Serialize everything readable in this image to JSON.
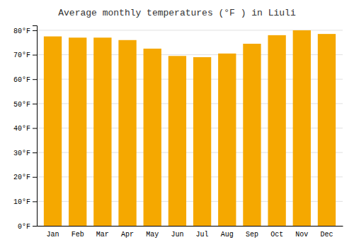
{
  "chart_data": {
    "type": "bar",
    "title": "Average monthly temperatures (°F ) in Liuli",
    "categories": [
      "Jan",
      "Feb",
      "Mar",
      "Apr",
      "May",
      "Jun",
      "Jul",
      "Aug",
      "Sep",
      "Oct",
      "Nov",
      "Dec"
    ],
    "values": [
      77.5,
      77.0,
      77.0,
      76.0,
      72.5,
      69.5,
      69.0,
      70.5,
      74.5,
      78.0,
      80.0,
      78.5
    ],
    "color": "#F5A800",
    "ylim": [
      0,
      82
    ],
    "yticks": [
      {
        "value": 0,
        "label": "0°F"
      },
      {
        "value": 10,
        "label": "10°F"
      },
      {
        "value": 20,
        "label": "20°F"
      },
      {
        "value": 30,
        "label": "30°F"
      },
      {
        "value": 40,
        "label": "40°F"
      },
      {
        "value": 50,
        "label": "50°F"
      },
      {
        "value": 60,
        "label": "60°F"
      },
      {
        "value": 70,
        "label": "70°F"
      },
      {
        "value": 80,
        "label": "80°F"
      }
    ],
    "grid": true
  }
}
